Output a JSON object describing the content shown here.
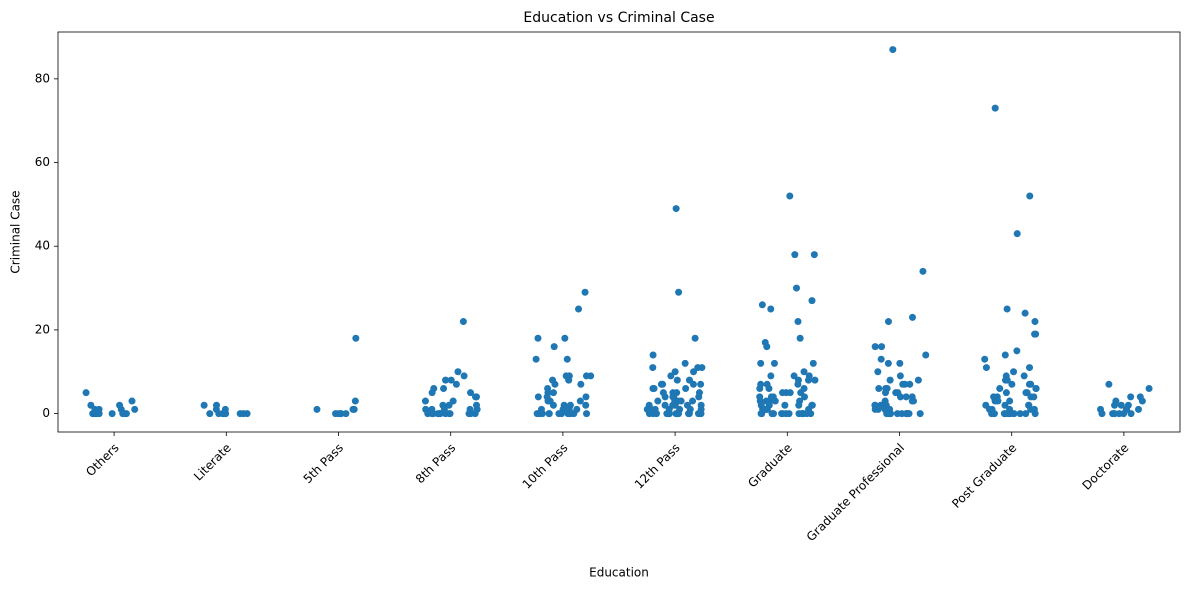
{
  "chart_data": {
    "type": "strip",
    "title": "Education vs Criminal Case",
    "x_label": "Education",
    "y_label": "Criminal Case",
    "color": "#1f77b4",
    "categories": [
      "Others",
      "Literate",
      "5th Pass",
      "8th Pass",
      "10th Pass",
      "12th Pass",
      "Graduate",
      "Graduate Professional",
      "Post Graduate",
      "Doctorate"
    ],
    "values": [
      [
        5,
        3,
        2,
        2,
        1,
        1,
        1,
        1,
        0,
        0,
        0,
        0,
        0,
        0,
        0,
        0,
        0
      ],
      [
        2,
        2,
        1,
        1,
        0,
        0,
        0,
        0,
        0,
        0,
        0,
        0
      ],
      [
        18,
        3,
        1,
        1,
        1,
        0,
        0,
        0,
        0,
        0
      ],
      [
        22,
        10,
        9,
        8,
        8,
        7,
        6,
        6,
        5,
        5,
        4,
        4,
        3,
        3,
        2,
        2,
        2,
        1,
        1,
        1,
        1,
        1,
        0,
        0,
        0,
        0,
        0,
        0,
        0,
        0,
        0,
        0,
        0,
        0,
        0
      ],
      [
        29,
        25,
        18,
        18,
        16,
        13,
        13,
        9,
        9,
        9,
        9,
        8,
        8,
        7,
        7,
        6,
        5,
        5,
        4,
        4,
        4,
        3,
        3,
        3,
        2,
        2,
        2,
        2,
        1,
        1,
        1,
        1,
        1,
        0,
        0,
        0,
        0,
        0,
        0,
        0,
        0,
        0,
        0,
        0,
        0
      ],
      [
        49,
        29,
        18,
        14,
        12,
        11,
        11,
        11,
        10,
        10,
        9,
        8,
        8,
        7,
        7,
        7,
        7,
        6,
        6,
        6,
        5,
        5,
        5,
        5,
        4,
        4,
        4,
        4,
        3,
        3,
        3,
        3,
        3,
        2,
        2,
        2,
        2,
        2,
        2,
        1,
        1,
        1,
        1,
        1,
        1,
        1,
        0,
        0,
        0,
        0,
        0,
        0,
        0,
        0,
        0,
        0,
        0,
        0,
        0,
        0,
        0
      ],
      [
        52,
        38,
        38,
        30,
        27,
        26,
        25,
        22,
        18,
        17,
        16,
        12,
        12,
        12,
        10,
        9,
        9,
        9,
        8,
        8,
        8,
        7,
        7,
        7,
        6,
        6,
        6,
        5,
        5,
        5,
        5,
        4,
        4,
        4,
        4,
        3,
        3,
        3,
        3,
        3,
        2,
        2,
        2,
        2,
        2,
        2,
        1,
        1,
        1,
        1,
        1,
        1,
        0,
        0,
        0,
        0,
        0,
        0,
        0,
        0,
        0,
        0,
        0,
        0,
        0,
        0,
        0
      ],
      [
        87,
        34,
        23,
        22,
        16,
        16,
        14,
        13,
        12,
        12,
        10,
        9,
        8,
        8,
        7,
        7,
        7,
        6,
        6,
        6,
        5,
        5,
        5,
        4,
        4,
        4,
        3,
        3,
        3,
        2,
        2,
        2,
        2,
        1,
        1,
        1,
        1,
        0,
        0,
        0,
        0,
        0,
        0,
        0,
        0,
        0,
        0,
        0,
        0
      ],
      [
        73,
        52,
        43,
        25,
        24,
        22,
        19,
        19,
        15,
        14,
        13,
        11,
        11,
        10,
        9,
        9,
        8,
        8,
        7,
        7,
        7,
        6,
        6,
        6,
        5,
        5,
        5,
        4,
        4,
        4,
        4,
        3,
        3,
        3,
        2,
        2,
        2,
        2,
        1,
        1,
        1,
        1,
        1,
        0,
        0,
        0,
        0,
        0,
        0,
        0,
        0,
        0,
        0,
        0,
        0
      ],
      [
        7,
        6,
        4,
        4,
        3,
        3,
        2,
        2,
        2,
        1,
        1,
        1,
        1,
        0,
        0,
        0,
        0,
        0,
        0,
        0
      ]
    ],
    "ylim": [
      -4.4,
      91.2
    ],
    "yticks": [
      0,
      20,
      40,
      60,
      80
    ]
  }
}
